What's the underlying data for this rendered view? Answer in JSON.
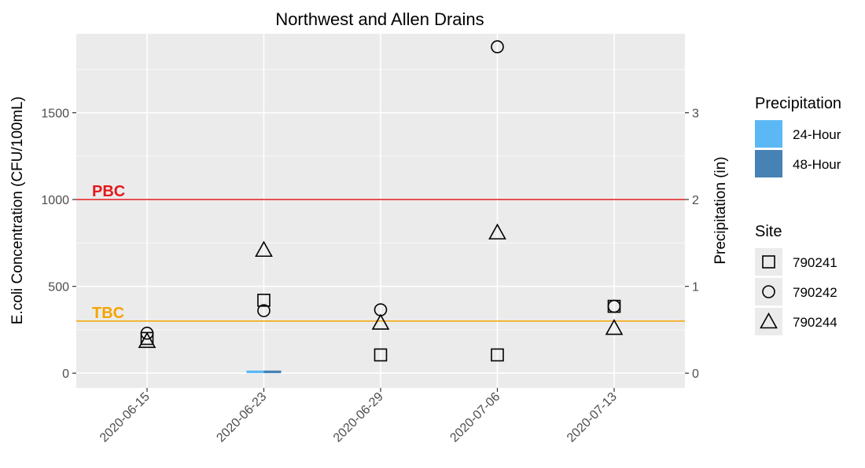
{
  "chart_data": {
    "type": "scatter",
    "title": "Northwest and Allen Drains",
    "ylabel": "E.coli Concentration (CFU/100mL)",
    "y2label": "Precipitation (in)",
    "categories": [
      "2020-06-15",
      "2020-06-23",
      "2020-06-29",
      "2020-07-06",
      "2020-07-13"
    ],
    "ylim": [
      -85,
      1955
    ],
    "yticks": [
      0,
      500,
      1000,
      1500
    ],
    "y2lim": [
      -0.17,
      3.91
    ],
    "y2ticks": [
      0,
      1,
      2,
      3
    ],
    "grid": true,
    "legend_position": "right",
    "reference_lines": [
      {
        "label": "PBC",
        "value": 1000,
        "color": "#e31a1c"
      },
      {
        "label": "TBC",
        "value": 300,
        "color": "#f5a300"
      }
    ],
    "series": [
      {
        "name": "790241",
        "shape": "square",
        "values": [
          200,
          420,
          105,
          105,
          385
        ]
      },
      {
        "name": "790242",
        "shape": "circle",
        "values": [
          230,
          360,
          365,
          1880,
          385
        ]
      },
      {
        "name": "790244",
        "shape": "triangle",
        "values": [
          185,
          710,
          290,
          810,
          260
        ]
      }
    ],
    "precipitation_legend_title": "Precipitation",
    "precipitation": [
      {
        "name": "24-Hour",
        "color": "#5cb8f5",
        "values": [
          0,
          0.03,
          0,
          0,
          0
        ]
      },
      {
        "name": "48-Hour",
        "color": "#4682b4",
        "values": [
          0,
          0.03,
          0,
          0,
          0
        ]
      }
    ],
    "site_legend_title": "Site"
  }
}
